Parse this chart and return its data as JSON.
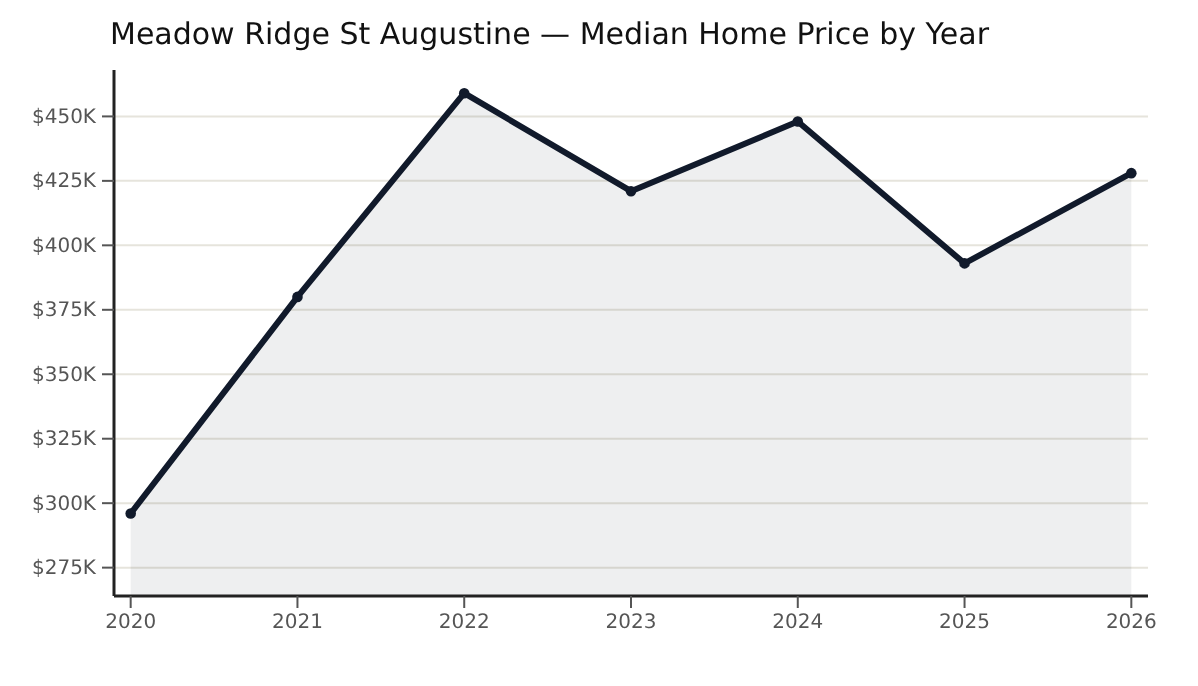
{
  "chart_data": {
    "type": "area",
    "title": "Meadow Ridge St Augustine — Median Home Price by Year",
    "x": [
      2020,
      2021,
      2022,
      2023,
      2024,
      2025,
      2026
    ],
    "series": [
      {
        "color": "#111a2b",
        "values": [
          296000,
          380000,
          459000,
          421000,
          448000,
          393000,
          428000
        ]
      }
    ],
    "xlim": [
      2019.9,
      2026.1
    ],
    "xticks": [
      2020,
      2021,
      2022,
      2023,
      2024,
      2025,
      2026
    ],
    "ylim": [
      264000,
      468000
    ],
    "yticks": [
      {
        "value": 275000,
        "label": "$275K"
      },
      {
        "value": 300000,
        "label": "$300K"
      },
      {
        "value": 325000,
        "label": "$325K"
      },
      {
        "value": 350000,
        "label": "$350K"
      },
      {
        "value": 375000,
        "label": "$375K"
      },
      {
        "value": 400000,
        "label": "$400K"
      },
      {
        "value": 425000,
        "label": "$425K"
      },
      {
        "value": 450000,
        "label": "$450K"
      }
    ],
    "grid": "y",
    "marker": "circle",
    "line_style": "solid"
  }
}
